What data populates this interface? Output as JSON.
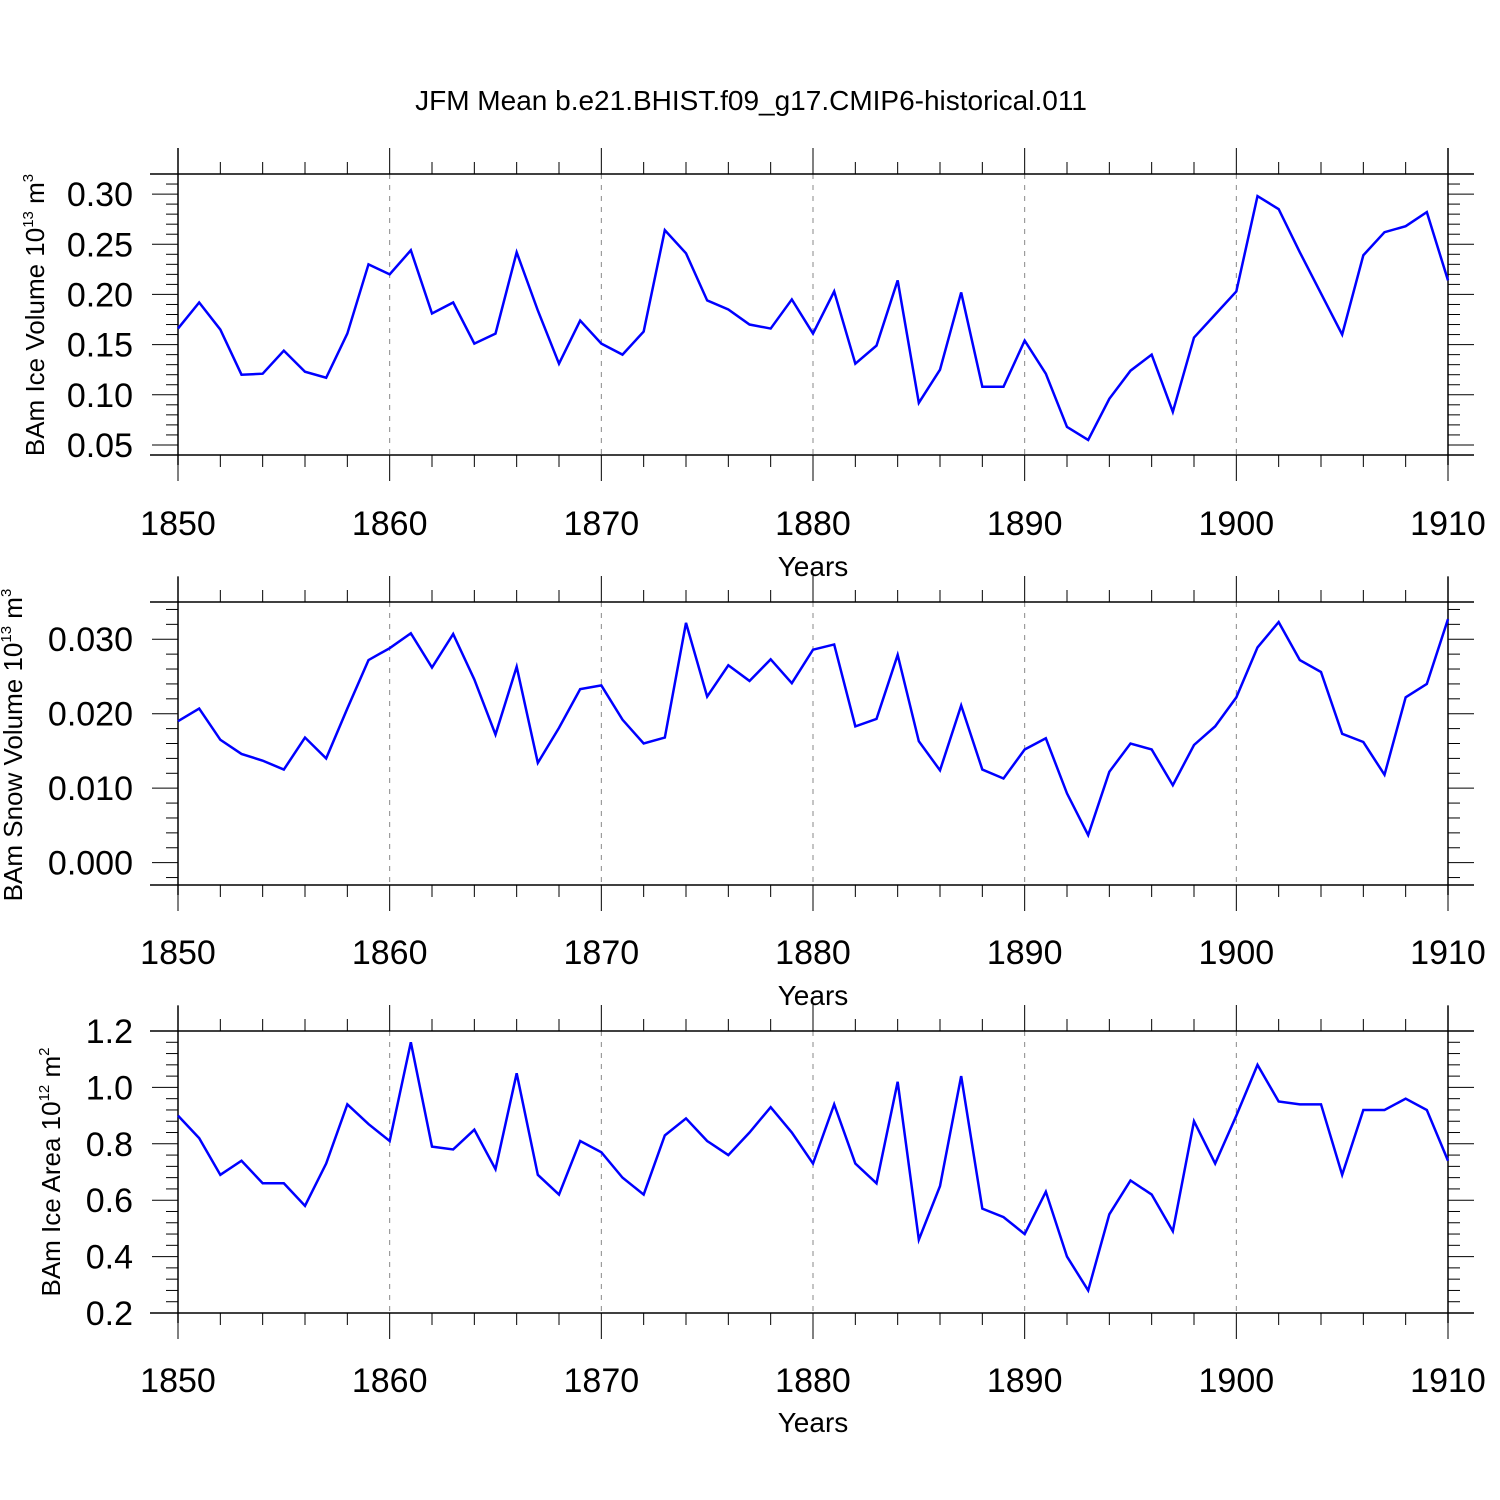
{
  "figure": {
    "title": "JFM Mean b.e21.BHIST.f09_g17.CMIP6-historical.011"
  },
  "colors": {
    "line": "#0000ff",
    "axis": "#000000",
    "grid": "#888888",
    "background": "#ffffff"
  },
  "chart_data": [
    {
      "type": "line",
      "title": "JFM Mean b.e21.BHIST.f09_g17.CMIP6-historical.011",
      "xlabel": "Years",
      "ylabel_prefix": "BAm Ice Volume 10",
      "ylabel_exp": "13",
      "ylabel_unit": " m",
      "ylabel_unit_exp": "3",
      "xlim": [
        1850,
        1910
      ],
      "ylim": [
        0.04,
        0.32
      ],
      "xticks": [
        1850,
        1860,
        1870,
        1880,
        1890,
        1900,
        1910
      ],
      "xtick_labels": [
        "1850",
        "1860",
        "1870",
        "1880",
        "1890",
        "1900",
        "1910"
      ],
      "yticks": [
        0.05,
        0.1,
        0.15,
        0.2,
        0.25,
        0.3
      ],
      "ytick_labels": [
        "0.05",
        "0.10",
        "0.15",
        "0.20",
        "0.25",
        "0.30"
      ],
      "grid": "vertical dashed at major x ticks",
      "series": [
        {
          "name": "BAm Ice Volume",
          "x": [
            1850,
            1851,
            1852,
            1853,
            1854,
            1855,
            1856,
            1857,
            1858,
            1859,
            1860,
            1861,
            1862,
            1863,
            1864,
            1865,
            1866,
            1867,
            1868,
            1869,
            1870,
            1871,
            1872,
            1873,
            1874,
            1875,
            1876,
            1877,
            1878,
            1879,
            1880,
            1881,
            1882,
            1883,
            1884,
            1885,
            1886,
            1887,
            1888,
            1889,
            1890,
            1891,
            1892,
            1893,
            1894,
            1895,
            1896,
            1897,
            1898,
            1899,
            1900,
            1901,
            1902,
            1903,
            1904,
            1905,
            1906,
            1907,
            1908,
            1909,
            1910
          ],
          "values": [
            0.166,
            0.192,
            0.165,
            0.12,
            0.121,
            0.144,
            0.123,
            0.117,
            0.161,
            0.23,
            0.22,
            0.244,
            0.181,
            0.192,
            0.151,
            0.161,
            0.242,
            0.184,
            0.131,
            0.174,
            0.151,
            0.14,
            0.163,
            0.264,
            0.241,
            0.194,
            0.185,
            0.17,
            0.166,
            0.195,
            0.161,
            0.203,
            0.131,
            0.149,
            0.214,
            0.092,
            0.125,
            0.202,
            0.108,
            0.108,
            0.154,
            0.121,
            0.068,
            0.055,
            0.096,
            0.124,
            0.14,
            0.083,
            0.157,
            0.18,
            0.203,
            0.298,
            0.285,
            0.242,
            0.201,
            0.16,
            0.239,
            0.262,
            0.268,
            0.282,
            0.214
          ]
        }
      ]
    },
    {
      "type": "line",
      "xlabel": "Years",
      "ylabel_prefix": "BAm Snow Volume 10",
      "ylabel_exp": "13",
      "ylabel_unit": " m",
      "ylabel_unit_exp": "3",
      "xlim": [
        1850,
        1910
      ],
      "ylim": [
        -0.003,
        0.035
      ],
      "xticks": [
        1850,
        1860,
        1870,
        1880,
        1890,
        1900,
        1910
      ],
      "xtick_labels": [
        "1850",
        "1860",
        "1870",
        "1880",
        "1890",
        "1900",
        "1910"
      ],
      "yticks": [
        0.0,
        0.01,
        0.02,
        0.03
      ],
      "ytick_labels": [
        "0.000",
        "0.010",
        "0.020",
        "0.030"
      ],
      "grid": "vertical dashed at major x ticks",
      "series": [
        {
          "name": "BAm Snow Volume",
          "x": [
            1850,
            1851,
            1852,
            1853,
            1854,
            1855,
            1856,
            1857,
            1858,
            1859,
            1860,
            1861,
            1862,
            1863,
            1864,
            1865,
            1866,
            1867,
            1868,
            1869,
            1870,
            1871,
            1872,
            1873,
            1874,
            1875,
            1876,
            1877,
            1878,
            1879,
            1880,
            1881,
            1882,
            1883,
            1884,
            1885,
            1886,
            1887,
            1888,
            1889,
            1890,
            1891,
            1892,
            1893,
            1894,
            1895,
            1896,
            1897,
            1898,
            1899,
            1900,
            1901,
            1902,
            1903,
            1904,
            1905,
            1906,
            1907,
            1908,
            1909,
            1910
          ],
          "values": [
            0.019,
            0.0207,
            0.0165,
            0.0146,
            0.0137,
            0.0125,
            0.0168,
            0.014,
            0.0207,
            0.0272,
            0.0288,
            0.0308,
            0.0262,
            0.0307,
            0.0246,
            0.0172,
            0.0263,
            0.0134,
            0.0181,
            0.0233,
            0.0238,
            0.0192,
            0.016,
            0.0168,
            0.0322,
            0.0223,
            0.0265,
            0.0244,
            0.0273,
            0.0241,
            0.0286,
            0.0293,
            0.0183,
            0.0193,
            0.0279,
            0.0163,
            0.0124,
            0.0211,
            0.0125,
            0.0113,
            0.0152,
            0.0167,
            0.0093,
            0.0037,
            0.0122,
            0.016,
            0.0152,
            0.0104,
            0.0158,
            0.0183,
            0.0222,
            0.0289,
            0.0323,
            0.0272,
            0.0256,
            0.0173,
            0.0162,
            0.0118,
            0.0222,
            0.024,
            0.0327
          ]
        }
      ]
    },
    {
      "type": "line",
      "xlabel": "Years",
      "ylabel_prefix": "BAm Ice Area 10",
      "ylabel_exp": "12",
      "ylabel_unit": " m",
      "ylabel_unit_exp": "2",
      "xlim": [
        1850,
        1910
      ],
      "ylim": [
        0.2,
        1.2
      ],
      "xticks": [
        1850,
        1860,
        1870,
        1880,
        1890,
        1900,
        1910
      ],
      "xtick_labels": [
        "1850",
        "1860",
        "1870",
        "1880",
        "1890",
        "1900",
        "1910"
      ],
      "yticks": [
        0.2,
        0.4,
        0.6,
        0.8,
        1.0,
        1.2
      ],
      "ytick_labels": [
        "0.2",
        "0.4",
        "0.6",
        "0.8",
        "1.0",
        "1.2"
      ],
      "grid": "vertical dashed at major x ticks",
      "series": [
        {
          "name": "BAm Ice Area",
          "x": [
            1850,
            1851,
            1852,
            1853,
            1854,
            1855,
            1856,
            1857,
            1858,
            1859,
            1860,
            1861,
            1862,
            1863,
            1864,
            1865,
            1866,
            1867,
            1868,
            1869,
            1870,
            1871,
            1872,
            1873,
            1874,
            1875,
            1876,
            1877,
            1878,
            1879,
            1880,
            1881,
            1882,
            1883,
            1884,
            1885,
            1886,
            1887,
            1888,
            1889,
            1890,
            1891,
            1892,
            1893,
            1894,
            1895,
            1896,
            1897,
            1898,
            1899,
            1900,
            1901,
            1902,
            1903,
            1904,
            1905,
            1906,
            1907,
            1908,
            1909,
            1910
          ],
          "values": [
            0.9,
            0.82,
            0.69,
            0.74,
            0.66,
            0.66,
            0.58,
            0.73,
            0.94,
            0.87,
            0.81,
            1.16,
            0.79,
            0.78,
            0.85,
            0.71,
            1.05,
            0.69,
            0.62,
            0.81,
            0.77,
            0.68,
            0.62,
            0.83,
            0.89,
            0.81,
            0.76,
            0.84,
            0.93,
            0.84,
            0.73,
            0.94,
            0.73,
            0.66,
            1.02,
            0.46,
            0.65,
            1.04,
            0.57,
            0.54,
            0.48,
            0.63,
            0.4,
            0.28,
            0.55,
            0.67,
            0.62,
            0.49,
            0.88,
            0.73,
            0.9,
            1.08,
            0.95,
            0.94,
            0.94,
            0.69,
            0.92,
            0.92,
            0.96,
            0.92,
            0.74
          ]
        }
      ]
    }
  ]
}
